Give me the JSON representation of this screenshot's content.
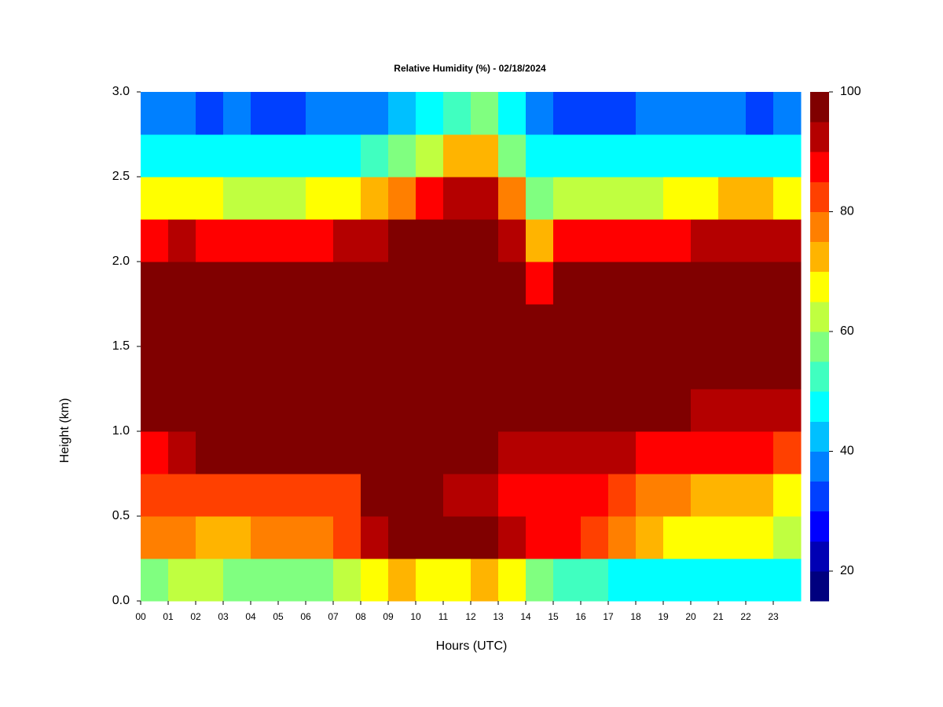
{
  "chart_data": {
    "type": "heatmap",
    "title": "Relative Humidity (%) - 02/18/2024",
    "x_label": "Hours (UTC)",
    "y_label": "Height (km)",
    "x": [
      0,
      1,
      2,
      3,
      4,
      5,
      6,
      7,
      8,
      9,
      10,
      11,
      12,
      13,
      14,
      15,
      16,
      17,
      18,
      19,
      20,
      21,
      22,
      23
    ],
    "xlim": [
      0,
      24
    ],
    "xticks": [
      {
        "value": 0,
        "label": "00"
      },
      {
        "value": 1,
        "label": "01"
      },
      {
        "value": 2,
        "label": "02"
      },
      {
        "value": 3,
        "label": "03"
      },
      {
        "value": 4,
        "label": "04"
      },
      {
        "value": 5,
        "label": "05"
      },
      {
        "value": 6,
        "label": "06"
      },
      {
        "value": 7,
        "label": "07"
      },
      {
        "value": 8,
        "label": "08"
      },
      {
        "value": 9,
        "label": "09"
      },
      {
        "value": 10,
        "label": "10"
      },
      {
        "value": 11,
        "label": "11"
      },
      {
        "value": 12,
        "label": "12"
      },
      {
        "value": 13,
        "label": "13"
      },
      {
        "value": 14,
        "label": "14"
      },
      {
        "value": 15,
        "label": "15"
      },
      {
        "value": 16,
        "label": "16"
      },
      {
        "value": 17,
        "label": "17"
      },
      {
        "value": 18,
        "label": "18"
      },
      {
        "value": 19,
        "label": "19"
      },
      {
        "value": 20,
        "label": "20"
      },
      {
        "value": 21,
        "label": "21"
      },
      {
        "value": 22,
        "label": "22"
      },
      {
        "value": 23,
        "label": "23"
      }
    ],
    "y": [
      0.125,
      0.375,
      0.625,
      0.875,
      1.125,
      1.375,
      1.625,
      1.875,
      2.125,
      2.375,
      2.625,
      2.875
    ],
    "ylim": [
      0,
      3
    ],
    "yticks": [
      {
        "value": 0,
        "label": "0.0"
      },
      {
        "value": 0.5,
        "label": "0.5"
      },
      {
        "value": 1,
        "label": "1.0"
      },
      {
        "value": 1.5,
        "label": "1.5"
      },
      {
        "value": 2,
        "label": "2.0"
      },
      {
        "value": 2.5,
        "label": "2.5"
      },
      {
        "value": 3,
        "label": "3.0"
      }
    ],
    "z": [
      [
        55,
        60,
        62,
        58,
        58,
        55,
        58,
        60,
        68,
        70,
        68,
        68,
        70,
        65,
        55,
        52,
        50,
        48,
        45,
        45,
        45,
        45,
        45,
        45
      ],
      [
        78,
        75,
        72,
        72,
        75,
        75,
        78,
        80,
        90,
        97,
        97,
        95,
        95,
        92,
        88,
        85,
        82,
        78,
        72,
        68,
        65,
        65,
        65,
        62
      ],
      [
        82,
        84,
        82,
        82,
        82,
        80,
        82,
        84,
        95,
        97,
        95,
        92,
        90,
        88,
        88,
        88,
        85,
        82,
        78,
        75,
        72,
        70,
        70,
        68
      ],
      [
        88,
        93,
        95,
        95,
        95,
        95,
        95,
        95,
        97,
        97,
        97,
        97,
        95,
        92,
        92,
        92,
        92,
        90,
        88,
        85,
        85,
        85,
        85,
        82
      ],
      [
        97,
        97,
        97,
        97,
        97,
        97,
        97,
        97,
        98,
        98,
        98,
        98,
        98,
        97,
        97,
        97,
        97,
        97,
        95,
        95,
        93,
        92,
        90,
        92
      ],
      [
        98,
        98,
        98,
        98,
        98,
        98,
        98,
        98,
        98,
        98,
        98,
        98,
        98,
        98,
        98,
        98,
        98,
        98,
        98,
        98,
        98,
        98,
        98,
        98
      ],
      [
        98,
        98,
        98,
        98,
        98,
        98,
        98,
        98,
        98,
        98,
        98,
        98,
        98,
        98,
        96,
        98,
        98,
        98,
        98,
        98,
        98,
        98,
        98,
        98
      ],
      [
        97,
        97,
        97,
        97,
        97,
        97,
        97,
        97,
        97,
        98,
        98,
        98,
        98,
        97,
        85,
        97,
        97,
        97,
        97,
        97,
        97,
        97,
        97,
        97
      ],
      [
        88,
        90,
        88,
        88,
        88,
        88,
        88,
        90,
        92,
        95,
        97,
        98,
        97,
        92,
        70,
        88,
        88,
        88,
        88,
        88,
        92,
        92,
        92,
        90
      ],
      [
        65,
        65,
        65,
        62,
        62,
        62,
        65,
        68,
        70,
        75,
        85,
        90,
        90,
        75,
        55,
        60,
        62,
        62,
        62,
        65,
        68,
        70,
        70,
        65
      ],
      [
        45,
        45,
        45,
        45,
        45,
        45,
        45,
        48,
        50,
        55,
        60,
        70,
        70,
        55,
        45,
        45,
        45,
        45,
        45,
        45,
        48,
        48,
        45,
        45
      ],
      [
        35,
        35,
        33,
        35,
        33,
        33,
        35,
        35,
        38,
        40,
        45,
        50,
        55,
        45,
        38,
        33,
        33,
        33,
        35,
        35,
        35,
        35,
        33,
        35
      ]
    ],
    "zlim": [
      15,
      100
    ],
    "levels": [
      15,
      20,
      25,
      30,
      35,
      40,
      45,
      50,
      55,
      60,
      65,
      70,
      75,
      80,
      85,
      90,
      95,
      100
    ],
    "colors": [
      "#00007f",
      "#0000b4",
      "#0000ff",
      "#0040ff",
      "#0080ff",
      "#00c0ff",
      "#00ffff",
      "#40ffc0",
      "#80ff80",
      "#c0ff40",
      "#ffff00",
      "#ffb400",
      "#ff7f00",
      "#ff4000",
      "#ff0000",
      "#b40000",
      "#800000"
    ],
    "zticks": [
      20,
      40,
      60,
      80,
      100
    ]
  }
}
